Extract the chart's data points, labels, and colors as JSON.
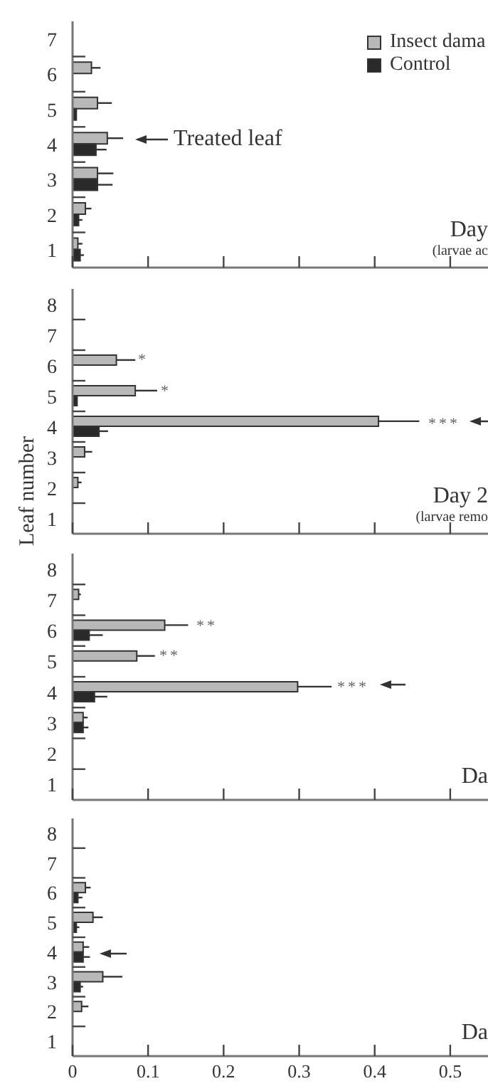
{
  "chart_data": [
    {
      "type": "bar",
      "orientation": "horizontal",
      "title": "Day",
      "subtitle": "(larvae ac",
      "categories": [
        "7",
        "6",
        "5",
        "4",
        "3",
        "2",
        "1"
      ],
      "series": [
        {
          "name": "Insect dama",
          "color": "#b8b8b8",
          "values": [
            null,
            0.025,
            0.033,
            0.046,
            0.033,
            0.017,
            0.007
          ],
          "errors": [
            null,
            [
              0.025,
              0.037
            ],
            [
              0.033,
              0.052
            ],
            [
              0.046,
              0.067
            ],
            [
              0.033,
              0.054
            ],
            [
              0.017,
              0.025
            ],
            [
              0.007,
              0.013
            ]
          ]
        },
        {
          "name": "Control",
          "color": "#2a2a2a",
          "values": [
            null,
            null,
            0.005,
            0.031,
            0.033,
            0.008,
            0.01
          ],
          "errors": [
            null,
            null,
            null,
            [
              0.031,
              0.045
            ],
            [
              0.033,
              0.053
            ],
            [
              0.008,
              0.013
            ],
            [
              0.01,
              0.015
            ]
          ]
        }
      ],
      "xlim": [
        0,
        0.55
      ],
      "xticks": [
        0,
        0.1,
        0.2,
        0.3,
        0.4,
        0.5
      ],
      "tick_labels": "y",
      "legend": "top right",
      "annotations": [
        "Treated leaf"
      ]
    },
    {
      "type": "bar",
      "orientation": "horizontal",
      "title": "Day 2",
      "subtitle": "(larvae remo",
      "ylabel": "Leaf number",
      "categories": [
        "8",
        "7",
        "6",
        "5",
        "4",
        "3",
        "2",
        "1"
      ],
      "series": [
        {
          "color": "#b8b8b8",
          "values": [
            null,
            null,
            0.058,
            0.083,
            0.405,
            0.016,
            0.007,
            null
          ],
          "errors": [
            null,
            null,
            [
              0.058,
              0.083
            ],
            [
              0.083,
              0.112
            ],
            [
              0.405,
              0.459
            ],
            [
              0.016,
              0.026
            ],
            [
              0.007,
              0.012
            ],
            null
          ]
        },
        {
          "color": "#2a2a2a",
          "values": [
            null,
            null,
            null,
            0.006,
            0.035,
            null,
            null,
            null
          ],
          "errors": [
            null,
            null,
            null,
            null,
            [
              0.035,
              0.047
            ],
            null,
            null,
            null
          ]
        }
      ],
      "xlim": [
        0,
        0.55
      ],
      "xticks": [
        0,
        0.1,
        0.2,
        0.3,
        0.4,
        0.5
      ],
      "tick_labels": "y",
      "annotations": [
        "*",
        "*",
        "***"
      ]
    },
    {
      "type": "bar",
      "orientation": "horizontal",
      "title": "Da",
      "categories": [
        "8",
        "7",
        "6",
        "5",
        "4",
        "3",
        "2",
        "1"
      ],
      "series": [
        {
          "color": "#b8b8b8",
          "values": [
            null,
            0.008,
            0.122,
            0.085,
            0.298,
            0.014,
            null,
            null
          ],
          "errors": [
            null,
            [
              0.008,
              0.011
            ],
            [
              0.122,
              0.153
            ],
            [
              0.085,
              0.109
            ],
            [
              0.298,
              0.343
            ],
            [
              0.014,
              0.02
            ],
            null,
            null
          ]
        },
        {
          "color": "#2a2a2a",
          "values": [
            null,
            null,
            0.022,
            null,
            0.029,
            0.014,
            null,
            null
          ],
          "errors": [
            null,
            null,
            [
              0.022,
              0.04
            ],
            null,
            [
              0.029,
              0.046
            ],
            [
              0.014,
              0.021
            ],
            null,
            null
          ]
        }
      ],
      "xlim": [
        0,
        0.55
      ],
      "xticks": [
        0,
        0.1,
        0.2,
        0.3,
        0.4,
        0.5
      ],
      "tick_labels": "y",
      "annotations": [
        "**",
        "**",
        "***"
      ]
    },
    {
      "type": "bar",
      "orientation": "horizontal",
      "title": "Da",
      "categories": [
        "8",
        "7",
        "6",
        "5",
        "4",
        "3",
        "2",
        "1"
      ],
      "series": [
        {
          "color": "#b8b8b8",
          "values": [
            null,
            null,
            0.017,
            0.027,
            0.014,
            0.04,
            0.012,
            null
          ],
          "errors": [
            null,
            null,
            [
              0.017,
              0.024
            ],
            [
              0.027,
              0.04
            ],
            [
              0.014,
              0.022
            ],
            [
              0.04,
              0.066
            ],
            [
              0.012,
              0.021
            ],
            null
          ]
        },
        {
          "color": "#2a2a2a",
          "values": [
            null,
            null,
            0.007,
            0.005,
            0.014,
            0.01,
            null,
            null
          ],
          "errors": [
            null,
            null,
            [
              0.007,
              0.013
            ],
            [
              0.005,
              0.009
            ],
            [
              0.014,
              0.023
            ],
            [
              0.01,
              0.014
            ],
            null,
            null
          ]
        }
      ],
      "xlim": [
        0,
        0.55
      ],
      "xticks": [
        0,
        0.1,
        0.2,
        0.3,
        0.4,
        0.5
      ]
    }
  ]
}
